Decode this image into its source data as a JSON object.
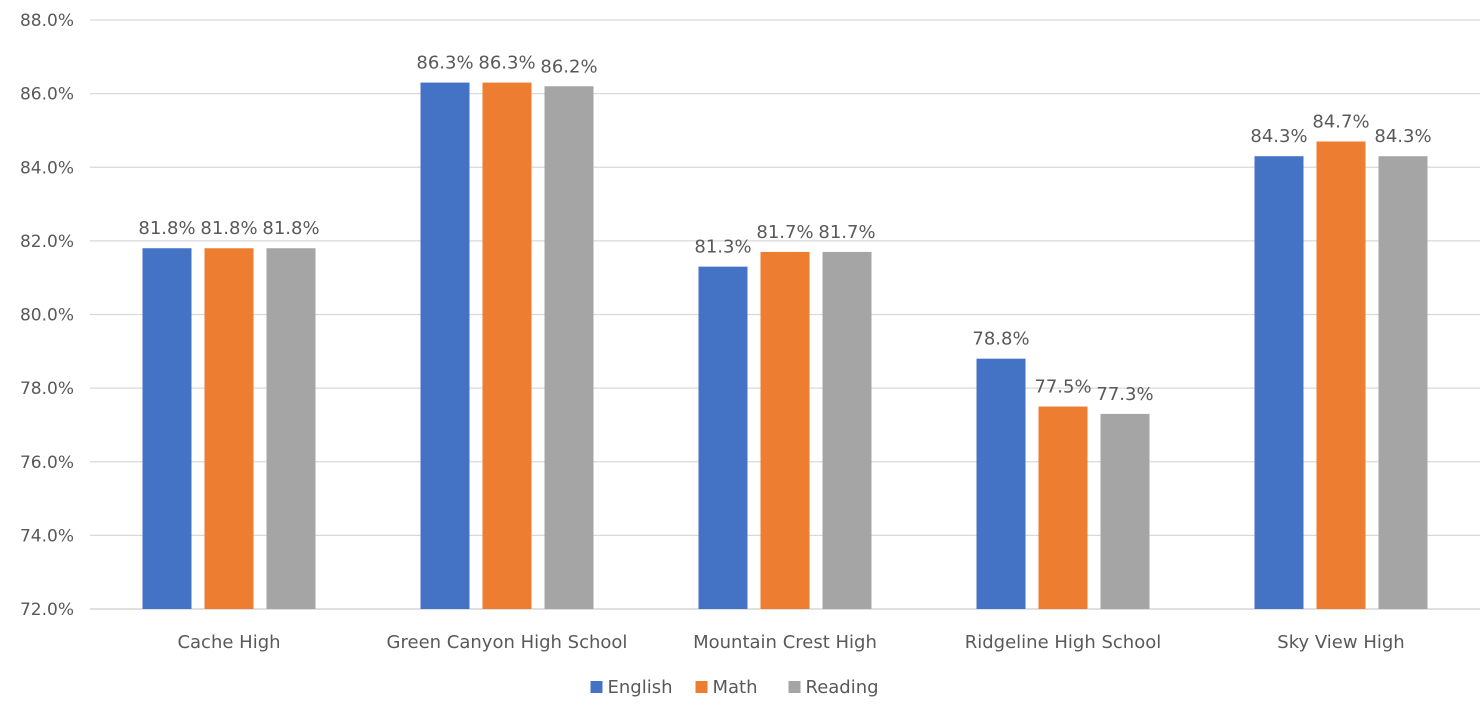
{
  "chart_data": {
    "type": "bar",
    "categories": [
      "Cache High",
      "Green Canyon High School",
      "Mountain Crest High",
      "Ridgeline High School",
      "Sky View High"
    ],
    "series": [
      {
        "name": "English",
        "color": "#4472C4",
        "values": [
          81.8,
          86.3,
          81.3,
          78.8,
          84.3
        ]
      },
      {
        "name": "Math",
        "color": "#ED7D31",
        "values": [
          81.8,
          86.3,
          81.7,
          77.5,
          84.7
        ]
      },
      {
        "name": "Reading",
        "color": "#A5A5A5",
        "values": [
          81.8,
          86.2,
          81.7,
          77.3,
          84.3
        ]
      }
    ],
    "ylim": [
      72,
      88
    ],
    "yticks": [
      72,
      74,
      76,
      78,
      80,
      82,
      84,
      86,
      88
    ],
    "y_tick_labels": [
      "72.0%",
      "74.0%",
      "76.0%",
      "78.0%",
      "80.0%",
      "82.0%",
      "84.0%",
      "86.0%",
      "88.0%"
    ],
    "data_labels": [
      [
        "81.8%",
        "86.3%",
        "81.3%",
        "78.8%",
        "84.3%"
      ],
      [
        "81.8%",
        "86.3%",
        "81.7%",
        "77.5%",
        "84.7%"
      ],
      [
        "81.8%",
        "86.2%",
        "81.7%",
        "77.3%",
        "84.3%"
      ]
    ],
    "grid": true,
    "legend": "bottom",
    "title": "",
    "xlabel": "",
    "ylabel": ""
  }
}
